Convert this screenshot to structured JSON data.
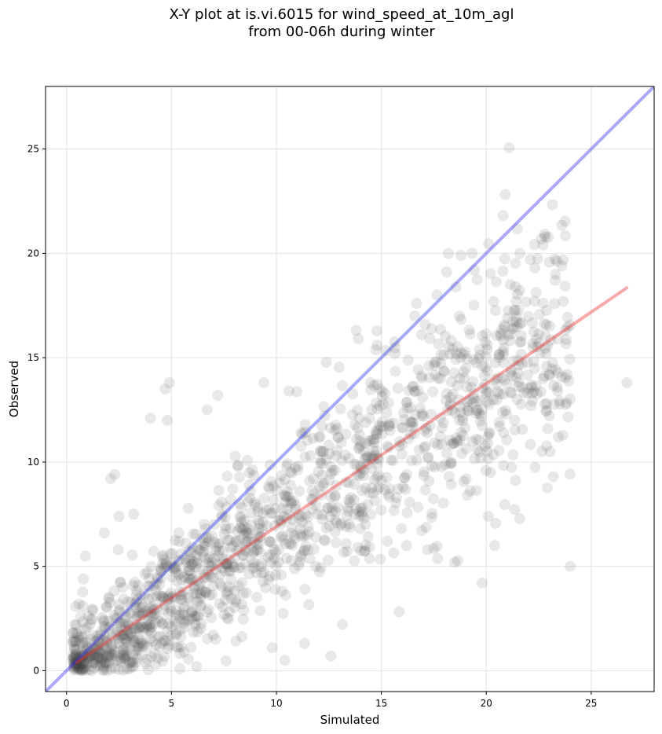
{
  "chart_data": {
    "type": "scatter",
    "title": [
      "X-Y plot at is.vi.6015 for wind_speed_at_10m_agl",
      "from 00-06h during winter"
    ],
    "xlabel": "Simulated",
    "ylabel": "Observed",
    "xlim": [
      -1,
      28
    ],
    "ylim": [
      -1,
      28
    ],
    "xticks": [
      0,
      5,
      10,
      15,
      20,
      25
    ],
    "yticks": [
      0,
      5,
      10,
      15,
      20,
      25
    ],
    "grid": true,
    "point_color": "#404040",
    "point_alpha": 0.12,
    "lines": [
      {
        "x": [
          -1,
          28
        ],
        "y": [
          -1,
          28
        ],
        "color": "#3333ee"
      },
      {
        "x": [
          0.5,
          26.7
        ],
        "y": [
          0.4,
          18.35
        ],
        "color": "#ee3333"
      }
    ],
    "scatter_model": {
      "count": 1500,
      "x_range": [
        0.3,
        24
      ],
      "slope": 0.68,
      "intercept": 0.0,
      "noise_sd": 2.0,
      "seed": 6015
    },
    "points": [
      [
        19.8,
        4.2
      ],
      [
        20.1,
        7.4
      ],
      [
        20.4,
        6.0
      ],
      [
        20.2,
        9.5
      ],
      [
        23.2,
        9.3
      ],
      [
        23.4,
        13.4
      ],
      [
        24.0,
        5.0
      ],
      [
        26.7,
        13.8
      ],
      [
        23.3,
        19.0
      ],
      [
        22.1,
        19.7
      ],
      [
        21.6,
        20.0
      ],
      [
        18.2,
        20.0
      ],
      [
        18.8,
        19.9
      ],
      [
        20.8,
        15.3
      ],
      [
        22.5,
        15.7
      ],
      [
        19.8,
        12.5
      ],
      [
        19.1,
        8.4
      ],
      [
        18.5,
        5.2
      ],
      [
        17.2,
        5.8
      ],
      [
        16.2,
        6.0
      ],
      [
        16.6,
        17.0
      ],
      [
        14.8,
        15.6
      ],
      [
        13.8,
        16.3
      ],
      [
        13.9,
        15.9
      ],
      [
        10.6,
        13.4
      ],
      [
        9.4,
        13.8
      ],
      [
        7.2,
        13.2
      ],
      [
        6.7,
        12.5
      ],
      [
        4.7,
        13.5
      ],
      [
        4.9,
        13.8
      ],
      [
        4.0,
        12.1
      ],
      [
        4.8,
        12.0
      ],
      [
        2.3,
        9.4
      ],
      [
        2.1,
        9.2
      ],
      [
        3.2,
        7.5
      ],
      [
        2.5,
        7.4
      ],
      [
        1.8,
        6.6
      ],
      [
        0.9,
        5.5
      ],
      [
        0.8,
        4.4
      ],
      [
        0.6,
        3.2
      ],
      [
        12.6,
        0.7
      ],
      [
        10.4,
        0.5
      ],
      [
        9.8,
        1.1
      ],
      [
        6.2,
        0.2
      ],
      [
        5.4,
        0.1
      ],
      [
        4.2,
        0.8
      ],
      [
        3.3,
        0.4
      ],
      [
        2.6,
        0.6
      ],
      [
        1.2,
        0.0
      ],
      [
        0.7,
        0.1
      ]
    ]
  }
}
